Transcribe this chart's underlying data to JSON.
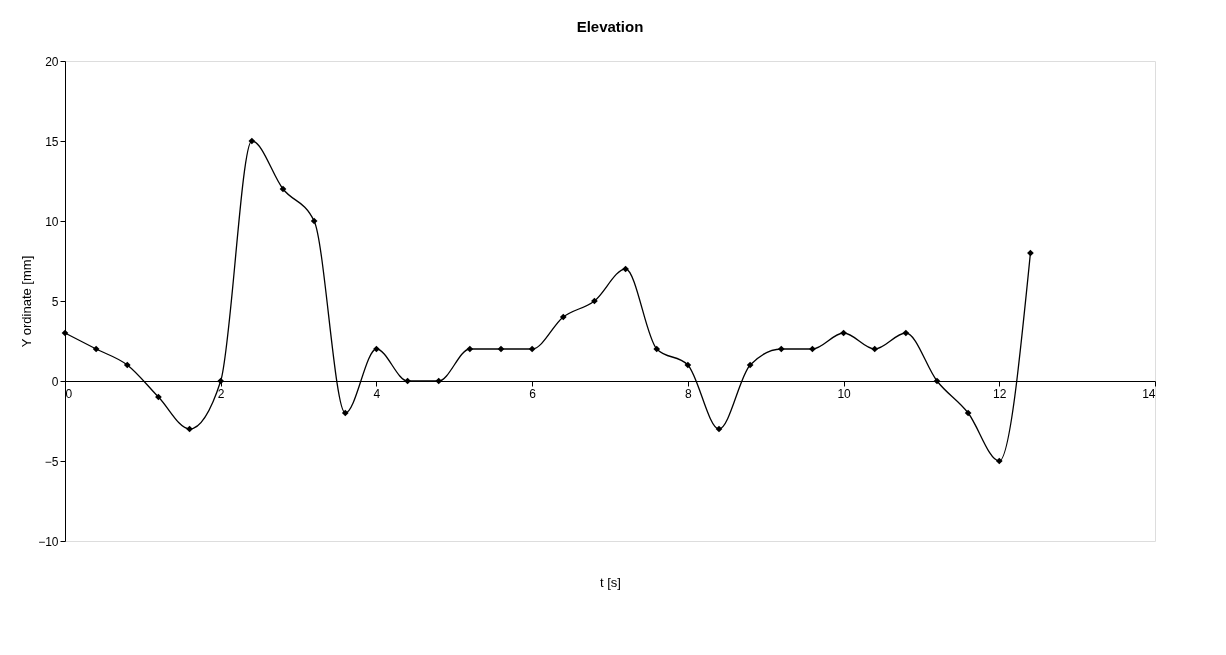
{
  "chart_data": {
    "type": "line",
    "title": "Elevation",
    "xlabel": "t [s]",
    "ylabel": "Y ordinate [mm]",
    "x": [
      0,
      0.4,
      0.8,
      1.2,
      1.6,
      2.0,
      2.4,
      2.8,
      3.2,
      3.6,
      4.0,
      4.4,
      4.8,
      5.2,
      5.6,
      6.0,
      6.4,
      6.8,
      7.2,
      7.6,
      8.0,
      8.4,
      8.8,
      9.2,
      9.6,
      10.0,
      10.4,
      10.8,
      11.2,
      11.6,
      12.0,
      12.4
    ],
    "series": [
      {
        "color": "#000000",
        "values": [
          3,
          2,
          1,
          -1,
          -3,
          0,
          15,
          12,
          10,
          -2,
          2,
          0,
          0,
          2,
          2,
          2,
          4,
          5,
          7,
          2,
          1,
          -3,
          1,
          2,
          2,
          3,
          2,
          3,
          0,
          -2,
          -5,
          8
        ]
      }
    ],
    "xlim": [
      0,
      14
    ],
    "xticks": [
      0,
      2,
      4,
      6,
      8,
      10,
      12,
      14
    ],
    "ylim": [
      -10,
      20
    ],
    "yticks": [
      -10,
      -5,
      0,
      5,
      10,
      15,
      20
    ],
    "grid": false,
    "legend": false,
    "marker": "diamond",
    "line_style": "solid"
  }
}
